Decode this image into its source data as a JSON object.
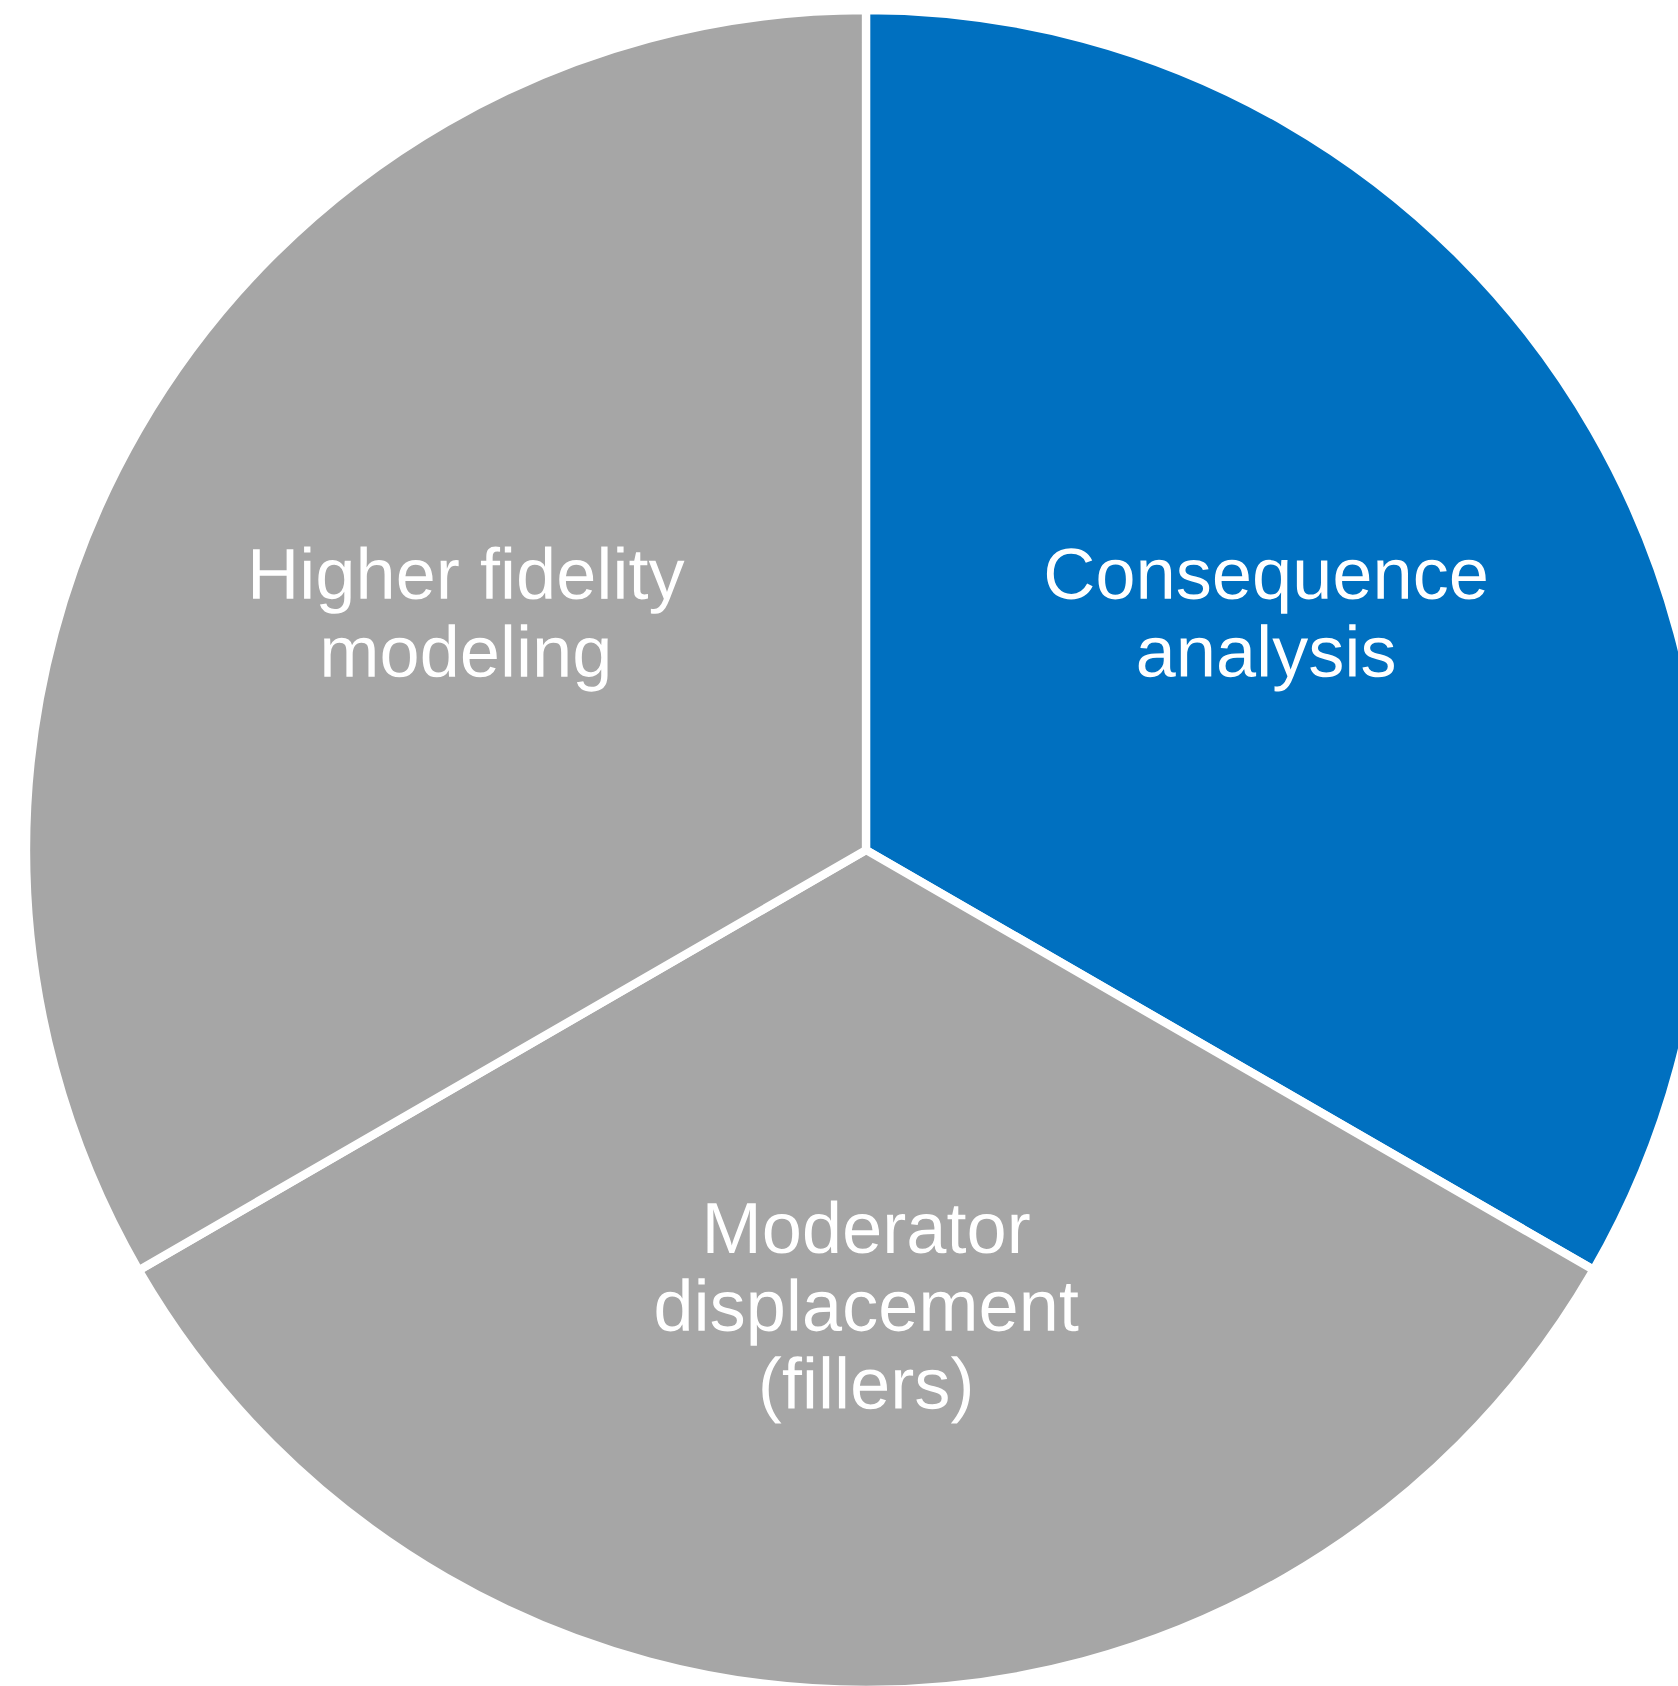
{
  "chart_data": {
    "type": "pie",
    "categories": [
      "Consequence\nanalysis",
      "Moderator\ndisplacement\n(fillers)",
      "Higher fidelity\nmodeling"
    ],
    "values": [
      33.33,
      33.33,
      33.34
    ],
    "colors": [
      "#0070c0",
      "#a6a6a6",
      "#a6a6a6"
    ],
    "legend": false
  }
}
